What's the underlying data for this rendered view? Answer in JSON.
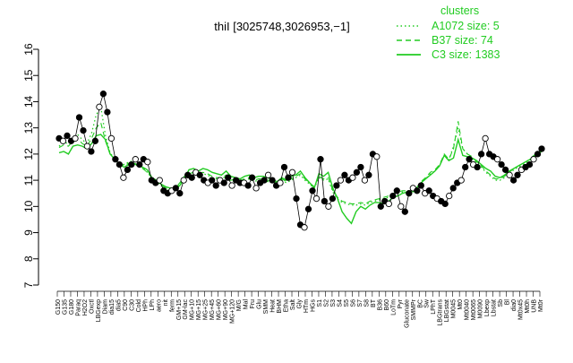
{
  "chart_data": {
    "type": "line",
    "title": "thiI [3025748,3026953,−1]",
    "ylim": [
      7,
      16
    ],
    "yticks": [
      "7",
      "8",
      "9",
      "10",
      "11",
      "12",
      "13",
      "14",
      "15",
      "16"
    ],
    "grid": false,
    "legend_title": "clusters",
    "legend_placement": "top-right",
    "legend": [
      {
        "label": "A1072 size: 5",
        "style": "dotted"
      },
      {
        "label": "B37 size: 74",
        "style": "dashed"
      },
      {
        "label": "C3 size: 1383",
        "style": "solid"
      }
    ],
    "x_tick_labels": [
      "G150",
      "G135",
      "G180",
      "Paraq",
      "H2O2",
      "Oxctl",
      "LBGexp",
      "Diam",
      "dia15",
      "dia5",
      "C90",
      "C30",
      "Cold",
      "HPh",
      "LPh",
      "aero",
      "nit",
      "ferm",
      "GM+15",
      "GM-lac",
      "MG+10",
      "MG+15",
      "MG+25",
      "MG+45",
      "MG+60",
      "MG+90",
      "MG+120",
      "M/G",
      "Mal",
      "Fru",
      "Glu",
      "SMM",
      "Heat",
      "BHM",
      "Etha",
      "Salt",
      "Gly",
      "HTm",
      "HGs",
      "S1",
      "S2",
      "S3",
      "S4",
      "S5",
      "S6",
      "S7",
      "S8",
      "BT",
      "B36",
      "B60",
      "LoTm",
      "Pyr",
      "Gluconate",
      "SMMPr",
      "BC",
      "Sw",
      "LPhT",
      "LBGtrans",
      "LBGstat",
      "M0045",
      "Mt0",
      "Mt0040",
      "Mt0065",
      "M0090",
      "Lbexp",
      "Lbstat",
      "Sb",
      "Bl",
      "dia0",
      "Mt0x45",
      "Mt0h",
      "UNB",
      "Mt0r"
    ],
    "series": [
      {
        "style": "solid",
        "color": "#22cc22",
        "values": [
          12.05,
          12.1,
          12.0,
          12.3,
          12.35,
          12.3,
          12.2,
          12.4,
          12.7,
          12.75,
          12.55,
          12.0,
          11.8,
          11.6,
          11.5,
          11.6,
          11.65,
          11.55,
          11.5,
          11.4,
          11.1,
          11.0,
          10.85,
          10.75,
          10.7,
          10.65,
          10.8,
          11.05,
          11.4,
          11.45,
          11.35,
          11.45,
          11.4,
          11.3,
          11.25,
          11.2,
          11.35,
          11.15,
          11.1,
          11.05,
          11.15,
          11.2,
          11.1,
          11.15,
          11.15,
          11.1,
          11.0,
          10.95,
          11.1,
          11.0,
          11.15,
          11.2,
          11.35,
          11.1,
          10.9,
          10.7,
          11.25,
          11.15,
          11.3,
          10.7,
          10.3,
          9.8,
          9.55,
          9.35,
          9.8,
          10.0,
          9.9,
          10.05,
          10.15,
          10.15,
          10.1,
          10.2,
          10.35,
          10.4,
          10.5,
          10.55,
          10.6,
          10.7,
          10.9,
          11.05,
          11.2,
          11.35,
          11.55,
          11.95,
          11.75,
          11.85,
          12.55,
          11.95,
          11.9,
          11.85,
          11.75,
          11.6,
          11.45,
          11.35,
          11.15,
          11.1,
          11.2,
          11.35,
          11.45,
          11.55,
          11.65,
          11.75,
          11.85,
          12.0,
          12.1
        ]
      },
      {
        "style": "dashed",
        "color": "#22cc22",
        "values": [
          12.25,
          12.35,
          12.3,
          12.5,
          12.6,
          12.4,
          12.3,
          12.6,
          13.0,
          13.2,
          12.5,
          12.0,
          11.8,
          11.7,
          11.55,
          11.65,
          11.7,
          11.55,
          11.45,
          11.3,
          11.1,
          10.95,
          10.8,
          10.7,
          10.65,
          10.7,
          10.9,
          11.15,
          11.25,
          11.3,
          11.25,
          11.3,
          11.25,
          11.15,
          11.1,
          11.1,
          11.2,
          11.0,
          11.05,
          11.0,
          11.05,
          11.1,
          11.0,
          11.05,
          11.05,
          11.0,
          10.95,
          10.9,
          11.05,
          10.95,
          11.05,
          11.15,
          11.25,
          11.05,
          10.9,
          10.75,
          11.15,
          11.05,
          11.1,
          10.6,
          10.35,
          10.2,
          10.15,
          10.1,
          10.1,
          10.15,
          10.1,
          10.2,
          10.25,
          10.3,
          10.35,
          10.4,
          10.5,
          10.55,
          10.6,
          10.6,
          10.55,
          10.7,
          10.95,
          11.1,
          11.3,
          11.4,
          11.6,
          12.0,
          11.8,
          12.2,
          13.25,
          12.2,
          12.0,
          11.9,
          11.7,
          11.55,
          11.35,
          11.2,
          11.05,
          11.05,
          11.15,
          11.3,
          11.45,
          11.55,
          11.65,
          11.75,
          11.9,
          12.05,
          12.15
        ]
      },
      {
        "style": "dotted",
        "color": "#22cc22",
        "values": [
          12.3,
          12.45,
          12.4,
          12.6,
          12.75,
          12.55,
          12.4,
          12.8,
          13.5,
          13.8,
          12.7,
          12.05,
          11.8,
          11.7,
          11.6,
          11.7,
          11.75,
          11.6,
          11.5,
          11.3,
          11.1,
          10.95,
          10.8,
          10.65,
          10.6,
          10.65,
          10.85,
          11.1,
          11.2,
          11.25,
          11.2,
          11.25,
          11.2,
          11.1,
          11.05,
          11.05,
          11.15,
          10.95,
          11.0,
          10.95,
          11.0,
          11.05,
          10.95,
          11.0,
          11.0,
          10.95,
          10.9,
          10.85,
          11.0,
          10.9,
          11.0,
          11.1,
          11.2,
          11.0,
          10.85,
          10.7,
          11.1,
          11.0,
          11.05,
          10.55,
          10.3,
          10.15,
          10.1,
          10.05,
          10.05,
          10.1,
          10.05,
          10.15,
          10.2,
          10.25,
          10.3,
          10.35,
          10.45,
          10.5,
          10.55,
          10.55,
          10.5,
          10.65,
          10.9,
          11.05,
          11.25,
          11.35,
          11.55,
          11.95,
          11.75,
          12.3,
          13.0,
          12.2,
          12.0,
          11.85,
          11.65,
          11.5,
          11.3,
          11.15,
          11.0,
          11.0,
          11.1,
          11.25,
          11.4,
          11.5,
          11.6,
          11.7,
          11.85,
          12.0,
          12.1
        ]
      }
    ],
    "points": [
      [
        0,
        12.6
      ],
      [
        1,
        12.5
      ],
      [
        2,
        12.7
      ],
      [
        3,
        12.5
      ],
      [
        4,
        12.6
      ],
      [
        5,
        13.4
      ],
      [
        6,
        12.9
      ],
      [
        7,
        12.3
      ],
      [
        8,
        12.1
      ],
      [
        9,
        12.5
      ],
      [
        10,
        13.8
      ],
      [
        11,
        14.3
      ],
      [
        12,
        13.6
      ],
      [
        13,
        12.6
      ],
      [
        14,
        11.8
      ],
      [
        15,
        11.6
      ],
      [
        16,
        11.1
      ],
      [
        17,
        11.4
      ],
      [
        18,
        11.6
      ],
      [
        19,
        11.8
      ],
      [
        20,
        11.6
      ],
      [
        21,
        11.8
      ],
      [
        22,
        11.7
      ],
      [
        23,
        11.0
      ],
      [
        24,
        10.9
      ],
      [
        25,
        11.0
      ],
      [
        26,
        10.6
      ],
      [
        27,
        10.5
      ],
      [
        28,
        10.6
      ],
      [
        29,
        10.7
      ],
      [
        30,
        10.5
      ],
      [
        31,
        11.0
      ],
      [
        32,
        11.2
      ],
      [
        33,
        11.1
      ],
      [
        34,
        11.3
      ],
      [
        35,
        11.2
      ],
      [
        36,
        11.0
      ],
      [
        37,
        10.9
      ],
      [
        38,
        11.0
      ],
      [
        39,
        10.8
      ],
      [
        40,
        11.0
      ],
      [
        41,
        10.9
      ],
      [
        42,
        11.1
      ],
      [
        43,
        10.8
      ],
      [
        44,
        11.0
      ],
      [
        45,
        10.9
      ],
      [
        46,
        10.9
      ],
      [
        47,
        10.8
      ],
      [
        48,
        11.1
      ],
      [
        49,
        10.7
      ],
      [
        50,
        10.9
      ],
      [
        51,
        11.0
      ],
      [
        52,
        11.2
      ],
      [
        53,
        11.0
      ],
      [
        54,
        10.8
      ],
      [
        55,
        10.9
      ],
      [
        56,
        11.5
      ],
      [
        57,
        11.1
      ],
      [
        58,
        11.3
      ],
      [
        59,
        10.3
      ],
      [
        60,
        9.3
      ],
      [
        61,
        9.2
      ],
      [
        62,
        9.9
      ],
      [
        63,
        10.6
      ],
      [
        64,
        10.3
      ],
      [
        65,
        11.8
      ],
      [
        66,
        10.2
      ],
      [
        67,
        10.0
      ],
      [
        68,
        10.3
      ],
      [
        69,
        10.8
      ],
      [
        70,
        11.0
      ],
      [
        71,
        11.2
      ],
      [
        72,
        11.0
      ],
      [
        73,
        11.1
      ],
      [
        74,
        11.3
      ],
      [
        75,
        11.5
      ],
      [
        76,
        11.0
      ],
      [
        77,
        11.2
      ],
      [
        78,
        12.0
      ],
      [
        79,
        11.9
      ],
      [
        80,
        10.0
      ],
      [
        81,
        10.2
      ],
      [
        82,
        10.1
      ],
      [
        83,
        10.4
      ],
      [
        84,
        10.6
      ],
      [
        85,
        10.0
      ],
      [
        86,
        9.8
      ],
      [
        87,
        10.5
      ],
      [
        88,
        10.7
      ],
      [
        89,
        10.6
      ],
      [
        90,
        10.8
      ],
      [
        91,
        10.5
      ],
      [
        92,
        10.6
      ],
      [
        93,
        10.4
      ],
      [
        94,
        10.3
      ],
      [
        95,
        10.2
      ],
      [
        96,
        10.1
      ],
      [
        97,
        10.4
      ],
      [
        98,
        10.7
      ],
      [
        99,
        10.9
      ],
      [
        100,
        11.0
      ],
      [
        101,
        11.5
      ],
      [
        102,
        11.8
      ],
      [
        103,
        11.6
      ],
      [
        104,
        11.5
      ],
      [
        105,
        12.0
      ],
      [
        106,
        12.6
      ],
      [
        107,
        12.0
      ],
      [
        108,
        11.9
      ],
      [
        109,
        11.8
      ],
      [
        110,
        11.6
      ],
      [
        111,
        11.4
      ],
      [
        112,
        11.2
      ],
      [
        113,
        11.0
      ],
      [
        114,
        11.2
      ],
      [
        115,
        11.4
      ],
      [
        116,
        11.5
      ],
      [
        117,
        11.6
      ],
      [
        118,
        11.8
      ],
      [
        119,
        12.0
      ],
      [
        120,
        12.2
      ]
    ]
  }
}
